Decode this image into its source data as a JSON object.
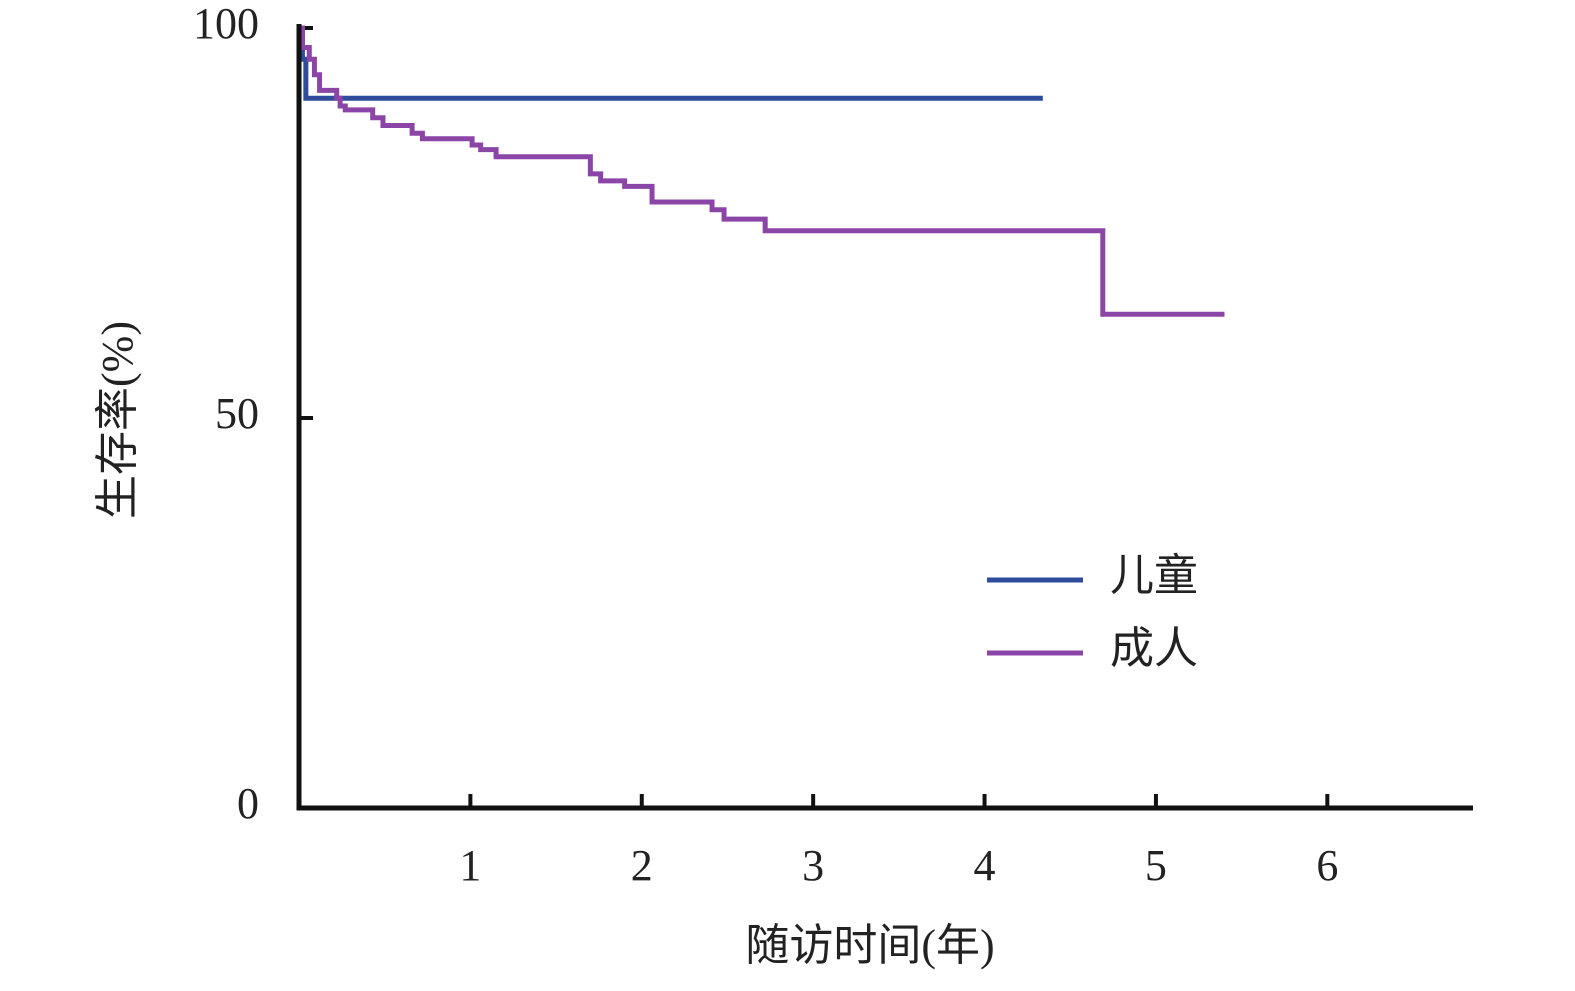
{
  "chart_data": {
    "type": "step",
    "x_label": "随访时间(年)",
    "y_label": "生存率(%)",
    "xlim": [
      0,
      6.85
    ],
    "ylim": [
      0,
      100
    ],
    "xticks": [
      1,
      2,
      3,
      4,
      5,
      6
    ],
    "yticks": [
      0,
      50,
      100
    ],
    "legend": "right",
    "series": [
      {
        "name": "儿童",
        "color": "#2f4b9c",
        "x": [
          0,
          0.02,
          0.04,
          4.34
        ],
        "values": [
          100,
          96,
          91,
          91
        ]
      },
      {
        "name": "成人",
        "color": "#8b45a6",
        "x": [
          0,
          0.02,
          0.06,
          0.09,
          0.12,
          0.22,
          0.24,
          0.27,
          0.43,
          0.49,
          0.66,
          0.72,
          1.01,
          1.06,
          1.15,
          1.7,
          1.76,
          1.9,
          2.06,
          2.41,
          2.48,
          2.72,
          4.69,
          5.4
        ],
        "values": [
          100,
          97.5,
          96,
          94,
          92,
          91,
          90,
          89.5,
          88.5,
          87.5,
          86.5,
          85.8,
          85,
          84.4,
          83.5,
          81.3,
          80.4,
          79.7,
          77.7,
          76.7,
          75.5,
          74,
          63.3,
          63.3
        ]
      }
    ]
  }
}
